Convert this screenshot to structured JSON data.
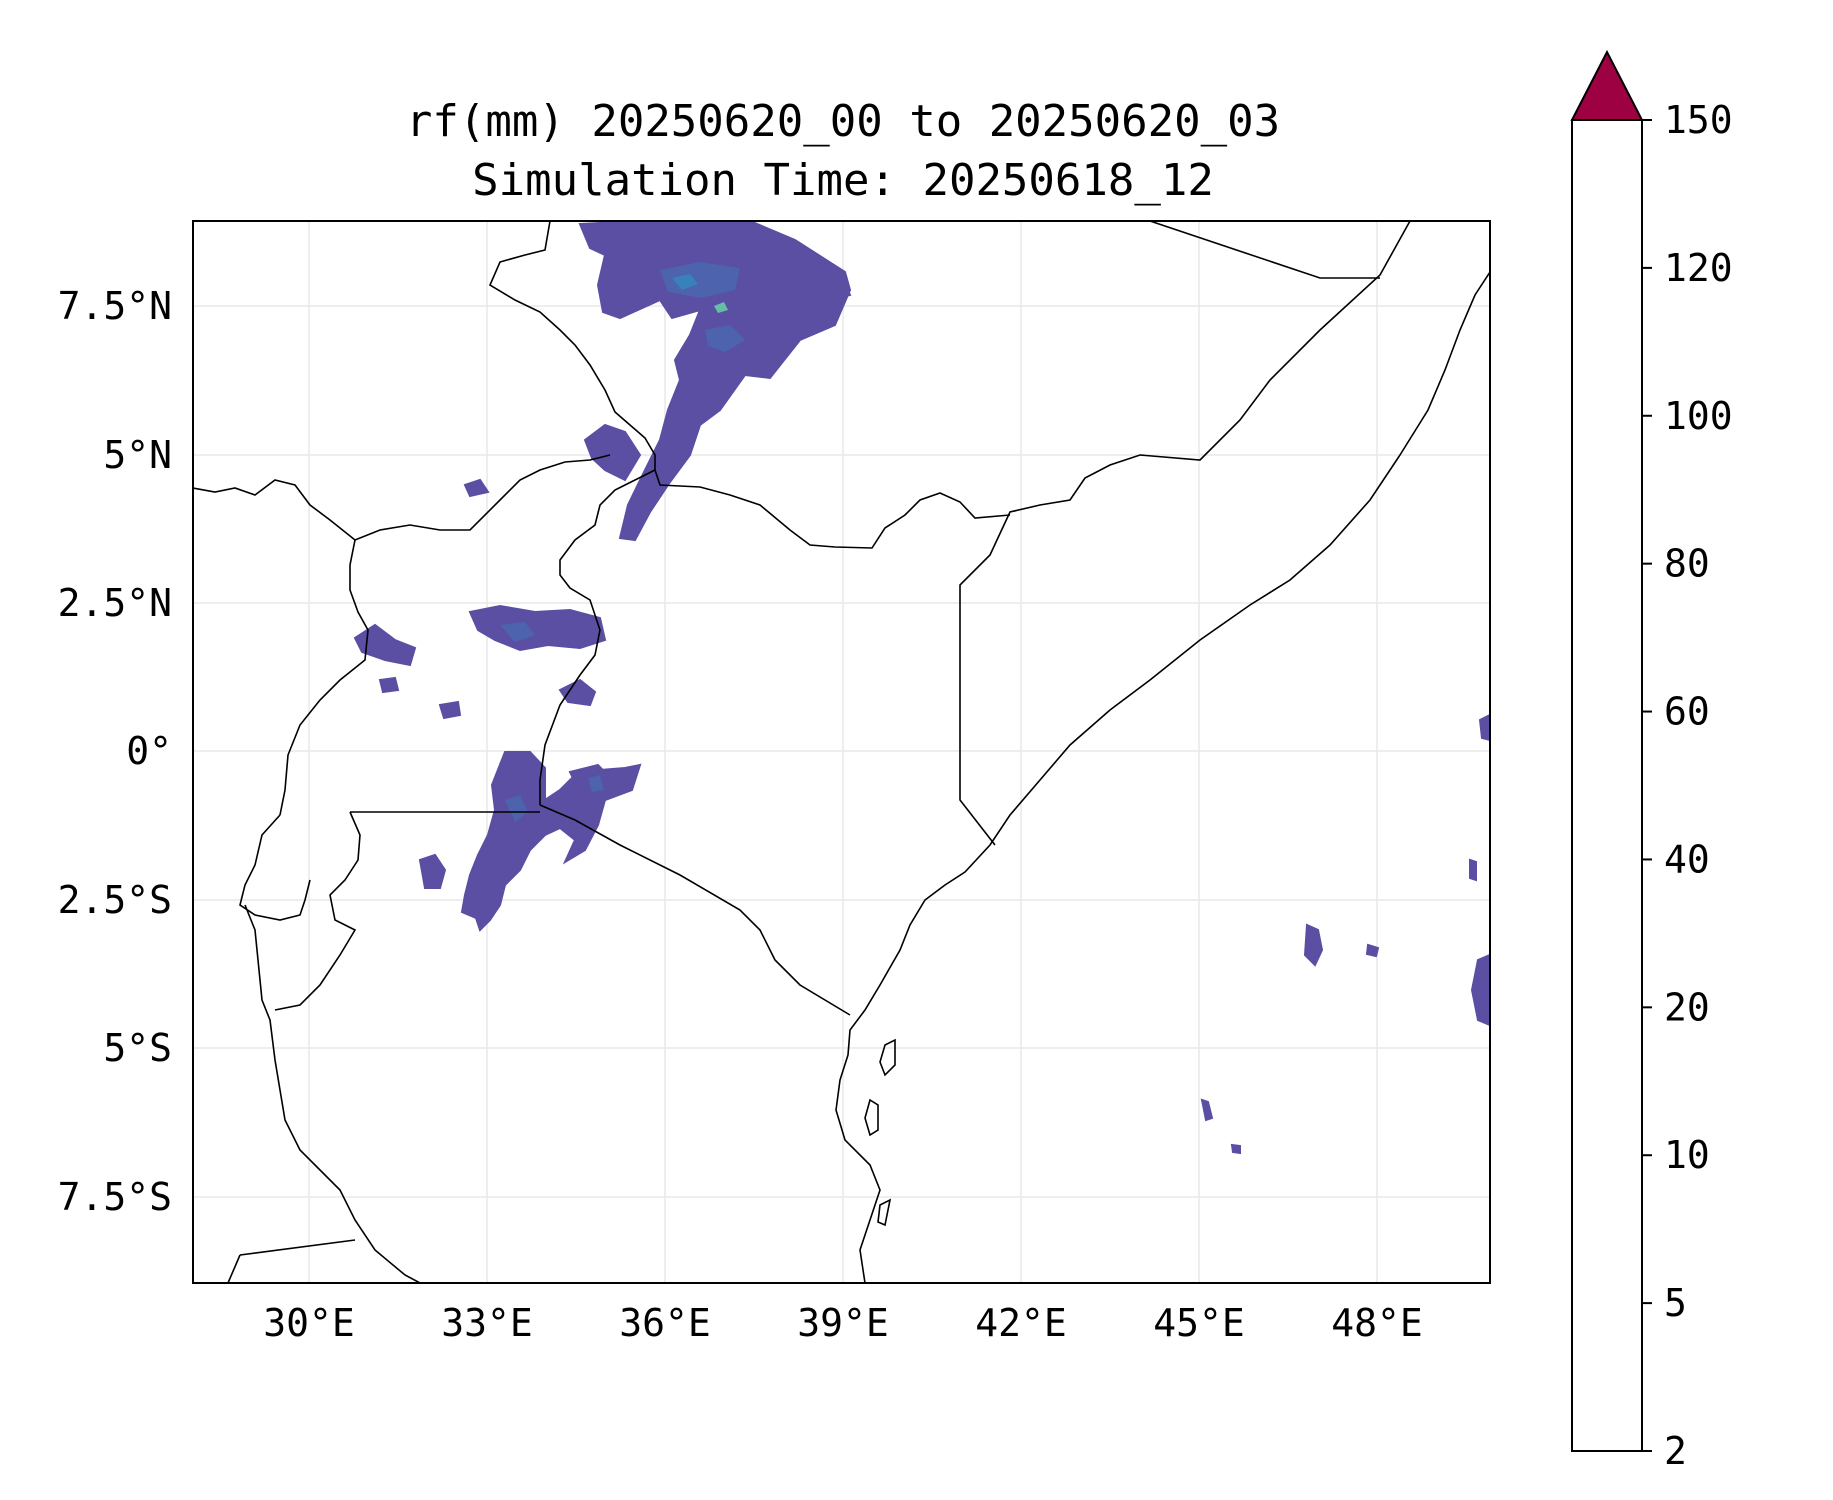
{
  "title": {
    "line1": "rf(mm) 20250620_00 to 20250620_03",
    "line2": "Simulation Time: 20250618_12"
  },
  "map": {
    "x_tick_labels": [
      "30°E",
      "33°E",
      "36°E",
      "39°E",
      "42°E",
      "45°E",
      "48°E"
    ],
    "y_tick_labels": [
      "7.5°N",
      "5°N",
      "2.5°N",
      "0°",
      "2.5°S",
      "5°S",
      "7.5°S"
    ],
    "lon_range": [
      28.1,
      49.9
    ],
    "lat_range": [
      -8.9,
      8.9
    ],
    "gridlines": true,
    "features": [
      "coastline",
      "country borders",
      "rainfall contours"
    ]
  },
  "colorbar": {
    "levels": [
      "2",
      "5",
      "10",
      "20",
      "40",
      "60",
      "80",
      "100",
      "120",
      "150"
    ],
    "colors": [
      "#5a4fa2",
      "#4d63ad",
      "#3881bb",
      "#66bea9",
      "#bde2a0",
      "#f3f9aa",
      "#fbdf8e",
      "#f89d59",
      "#d53f4e"
    ],
    "extend_color": "#9e0142",
    "extend": "max"
  }
}
